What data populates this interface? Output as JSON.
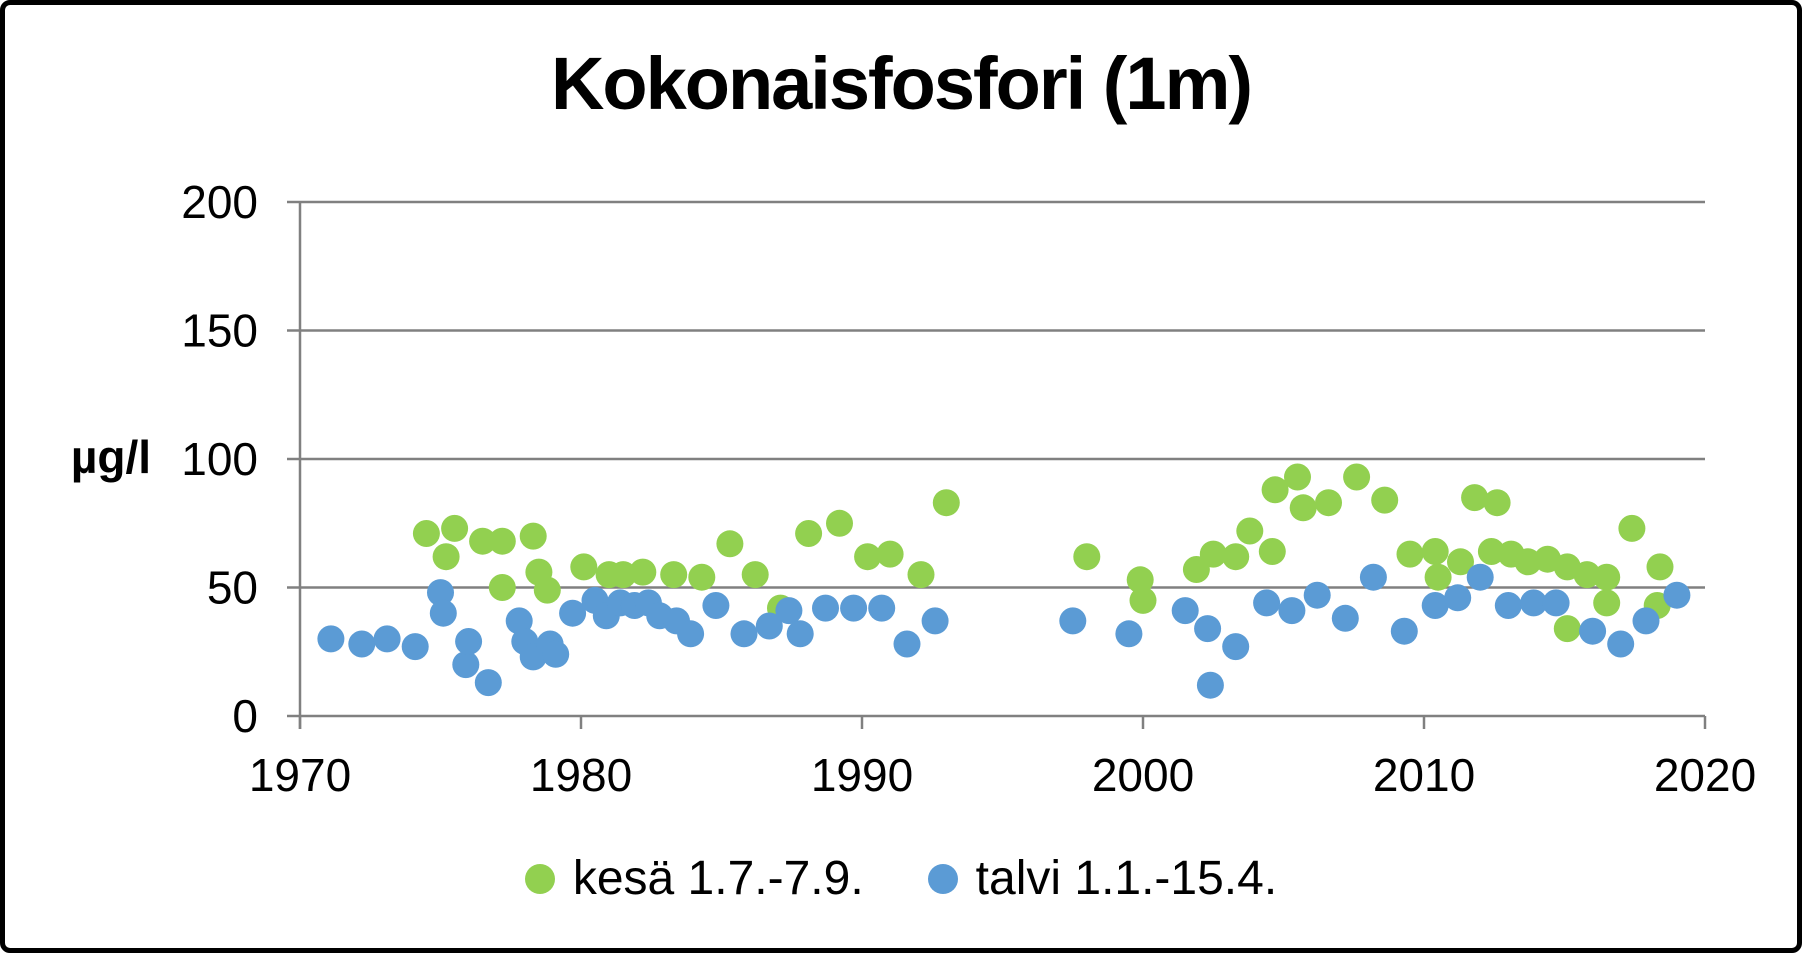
{
  "title": "Kokonaisfosfori (1m)",
  "y_axis_label": "µg/l",
  "legend": {
    "summer_label": "kesä 1.7.-7.9.",
    "winter_label": "talvi 1.1.-15.4."
  },
  "colors": {
    "summer": "#92D050",
    "winter": "#5B9BD5",
    "grid": "#808080",
    "text": "#000000",
    "background": "#FFFFFF",
    "frame": "#000000"
  },
  "chart_data": {
    "type": "scatter",
    "title": "Kokonaisfosfori (1m)",
    "xlabel": "",
    "ylabel": "µg/l",
    "xlim": [
      1970,
      2020
    ],
    "ylim": [
      0,
      200
    ],
    "x_ticks": [
      1970,
      1980,
      1990,
      2000,
      2010,
      2020
    ],
    "y_ticks": [
      0,
      50,
      100,
      150,
      200
    ],
    "grid": "horizontal",
    "legend_position": "bottom-center",
    "marker_radius_px": 13.5,
    "series": [
      {
        "name": "kesä 1.7.-7.9.",
        "color": "#92D050",
        "points": [
          [
            1974.5,
            71
          ],
          [
            1975.2,
            62
          ],
          [
            1975.5,
            73
          ],
          [
            1976.5,
            68
          ],
          [
            1977.2,
            68
          ],
          [
            1977.2,
            50
          ],
          [
            1978.3,
            70
          ],
          [
            1978.5,
            56
          ],
          [
            1978.8,
            49
          ],
          [
            1980.1,
            58
          ],
          [
            1981.0,
            55
          ],
          [
            1981.5,
            55
          ],
          [
            1982.2,
            56
          ],
          [
            1983.3,
            55
          ],
          [
            1984.3,
            54
          ],
          [
            1985.3,
            67
          ],
          [
            1986.2,
            55
          ],
          [
            1987.1,
            42
          ],
          [
            1988.1,
            71
          ],
          [
            1989.2,
            75
          ],
          [
            1990.2,
            62
          ],
          [
            1991.0,
            63
          ],
          [
            1992.1,
            55
          ],
          [
            1993.0,
            83
          ],
          [
            1998.0,
            62
          ],
          [
            1999.9,
            53
          ],
          [
            2000.0,
            45
          ],
          [
            2001.9,
            57
          ],
          [
            2002.5,
            63
          ],
          [
            2003.3,
            62
          ],
          [
            2003.8,
            72
          ],
          [
            2004.6,
            64
          ],
          [
            2004.7,
            88
          ],
          [
            2005.5,
            93
          ],
          [
            2005.7,
            81
          ],
          [
            2006.6,
            83
          ],
          [
            2007.6,
            93
          ],
          [
            2008.6,
            84
          ],
          [
            2009.5,
            63
          ],
          [
            2010.4,
            64
          ],
          [
            2010.5,
            54
          ],
          [
            2011.3,
            60
          ],
          [
            2011.8,
            85
          ],
          [
            2012.4,
            64
          ],
          [
            2012.6,
            83
          ],
          [
            2013.1,
            63
          ],
          [
            2013.7,
            60
          ],
          [
            2014.4,
            61
          ],
          [
            2015.1,
            58
          ],
          [
            2015.1,
            34
          ],
          [
            2015.8,
            55
          ],
          [
            2016.5,
            54
          ],
          [
            2016.5,
            44
          ],
          [
            2017.4,
            73
          ],
          [
            2018.3,
            43
          ],
          [
            2018.4,
            58
          ]
        ]
      },
      {
        "name": "talvi 1.1.-15.4.",
        "color": "#5B9BD5",
        "points": [
          [
            1971.1,
            30
          ],
          [
            1972.2,
            28
          ],
          [
            1973.1,
            30
          ],
          [
            1974.1,
            27
          ],
          [
            1975.0,
            48
          ],
          [
            1975.1,
            40
          ],
          [
            1975.9,
            20
          ],
          [
            1976.0,
            29
          ],
          [
            1976.7,
            13
          ],
          [
            1977.8,
            37
          ],
          [
            1978.0,
            29
          ],
          [
            1978.3,
            23
          ],
          [
            1978.9,
            28
          ],
          [
            1979.1,
            24
          ],
          [
            1979.7,
            40
          ],
          [
            1980.5,
            45
          ],
          [
            1980.9,
            39
          ],
          [
            1981.4,
            44
          ],
          [
            1981.9,
            43
          ],
          [
            1982.4,
            44
          ],
          [
            1982.8,
            39
          ],
          [
            1983.4,
            37
          ],
          [
            1983.9,
            32
          ],
          [
            1984.8,
            43
          ],
          [
            1985.8,
            32
          ],
          [
            1986.7,
            35
          ],
          [
            1987.4,
            41
          ],
          [
            1987.8,
            32
          ],
          [
            1988.7,
            42
          ],
          [
            1989.7,
            42
          ],
          [
            1990.7,
            42
          ],
          [
            1991.6,
            28
          ],
          [
            1992.6,
            37
          ],
          [
            1997.5,
            37
          ],
          [
            1999.5,
            32
          ],
          [
            2001.5,
            41
          ],
          [
            2002.3,
            34
          ],
          [
            2002.4,
            12
          ],
          [
            2003.3,
            27
          ],
          [
            2004.4,
            44
          ],
          [
            2005.3,
            41
          ],
          [
            2006.2,
            47
          ],
          [
            2007.2,
            38
          ],
          [
            2008.2,
            54
          ],
          [
            2009.3,
            33
          ],
          [
            2010.4,
            43
          ],
          [
            2011.2,
            46
          ],
          [
            2012.0,
            54
          ],
          [
            2013.0,
            43
          ],
          [
            2013.9,
            44
          ],
          [
            2014.7,
            44
          ],
          [
            2016.0,
            33
          ],
          [
            2017.0,
            28
          ],
          [
            2017.9,
            37
          ],
          [
            2019.0,
            47
          ]
        ]
      }
    ]
  }
}
